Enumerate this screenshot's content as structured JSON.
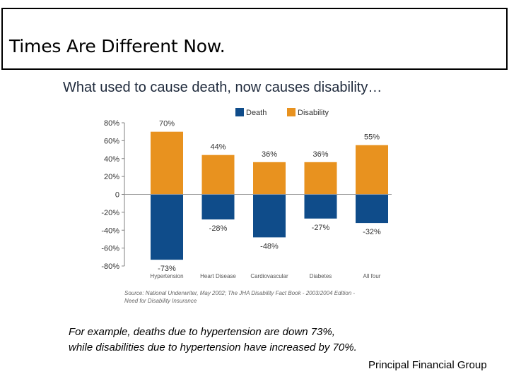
{
  "header": {
    "title": "Times Are Different Now."
  },
  "subtitle": "What used to cause death, now causes disability…",
  "chart_data": {
    "type": "bar",
    "categories": [
      "Hypertension",
      "Heart Disease",
      "Cardiovascular",
      "Diabetes",
      "All four"
    ],
    "series": [
      {
        "name": "Death",
        "values": [
          -73,
          -28,
          -48,
          -27,
          -32
        ],
        "color": "#0f4c8a"
      },
      {
        "name": "Disability",
        "values": [
          70,
          44,
          36,
          36,
          55
        ],
        "color": "#e8921f"
      }
    ],
    "ylim": [
      -80,
      80
    ],
    "yticks": [
      {
        "value": 80,
        "label": "80%"
      },
      {
        "value": 60,
        "label": "60%"
      },
      {
        "value": 40,
        "label": "40%"
      },
      {
        "value": 20,
        "label": "20%"
      },
      {
        "value": 0,
        "label": "0"
      },
      {
        "value": -20,
        "label": "-20%"
      },
      {
        "value": -40,
        "label": "-40%"
      },
      {
        "value": -60,
        "label": "-60%"
      },
      {
        "value": -80,
        "label": "-80%"
      }
    ],
    "legend_position": "top-right",
    "source_lines": [
      "Source: National Underwriter, May 2002; The JHA Disability Fact Book - 2003/2004 Edition -",
      "Need for Disability Insurance"
    ]
  },
  "caption": {
    "line1": "For example, deaths due to hypertension are down 73%,",
    "line2": "while disabilities due to hypertension have increased by 70%."
  },
  "footer": "Principal Financial Group"
}
